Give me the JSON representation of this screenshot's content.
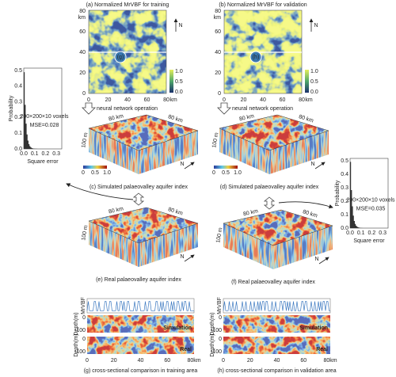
{
  "map_axes": {
    "y_ticks": [
      "80",
      "60",
      "40",
      "20",
      "0"
    ],
    "y_unit": "km",
    "x_ticks": [
      "0",
      "20",
      "40",
      "60",
      "80"
    ],
    "x_unit": "km",
    "colorbar_ticks": [
      "1.0",
      "0.5",
      "0.0"
    ],
    "north": "N"
  },
  "panels": [
    {
      "title": "(a) Normalized MrVBF for training",
      "marker": "(g)"
    },
    {
      "title": "(b) Normalized MrVBF for validation",
      "marker": "(h)"
    }
  ],
  "operation": "neural network operation",
  "blocks": {
    "length_label": "80 km",
    "depth_label": "100 m",
    "north": "N",
    "colorbar_ticks": [
      "0",
      "0.5",
      "1.0"
    ],
    "captions": [
      "(c) Simulated palaeovalley aquifer index",
      "(d) Simulated palaeovalley aquifer index",
      "(e) Real palaeovalley aquifer index",
      "(f) Real palaeovalley aquifer index"
    ]
  },
  "histograms": [
    {
      "y_label": "Probability",
      "x_label": "Square error",
      "yticks": [
        "0.5",
        "0.4",
        "0.3",
        "0.2",
        "0.1",
        "0.0"
      ],
      "xticks": [
        "0.0",
        "0.1",
        "0.2",
        "0.3"
      ],
      "voxels": "200×200×10 voxels",
      "mse": "MSE=0.028"
    },
    {
      "y_label": "Probability",
      "x_label": "Square error",
      "yticks": [
        "0.5",
        "0.4",
        "0.3",
        "0.2",
        "0.1",
        "0.0"
      ],
      "xticks": [
        "0.0",
        "0.1",
        "0.2",
        "0.3"
      ],
      "voxels": "200×200×10 voxels",
      "mse": "MSE=0.035"
    }
  ],
  "sections": {
    "mrvbf_label": "MrVBF",
    "depth_label": "Depth(m)",
    "depth_ticks": [
      "0",
      "100"
    ],
    "x_ticks": [
      "0",
      "20",
      "40",
      "60",
      "80km"
    ],
    "simulation": "Simulation",
    "real": "Real",
    "captions": [
      "(g) cross-sectional comparison in training area",
      "(h) cross-sectional comparison in validation area"
    ]
  }
}
